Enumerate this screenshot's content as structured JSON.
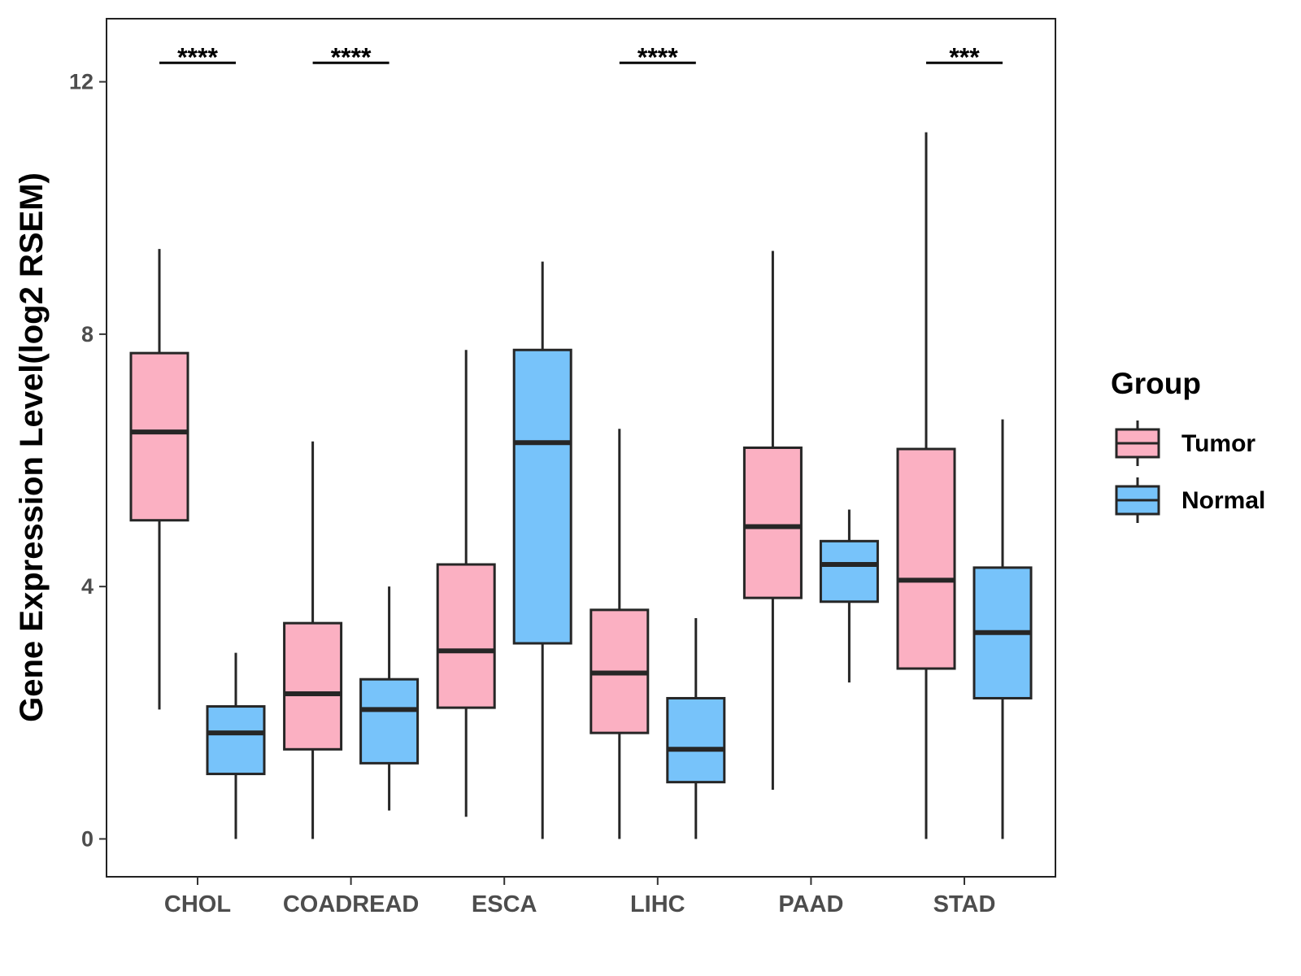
{
  "chart_data": {
    "type": "boxplot",
    "title": "",
    "xlabel": "",
    "ylabel": "Gene Expression Level(log2 RSEM)",
    "ylim": [
      -0.6,
      13.0
    ],
    "yticks": [
      0,
      4,
      8,
      12
    ],
    "grid": false,
    "legend": {
      "title": "Group",
      "position": "right",
      "entries": [
        {
          "name": "Tumor",
          "color": "#FBB0C2"
        },
        {
          "name": "Normal",
          "color": "#77C3FA"
        }
      ]
    },
    "categories": [
      "CHOL",
      "COADREAD",
      "ESCA",
      "LIHC",
      "PAAD",
      "STAD"
    ],
    "series": [
      {
        "name": "Tumor",
        "color": "#FBB0C2",
        "boxes": [
          {
            "min": 2.05,
            "q1": 5.05,
            "median": 6.45,
            "q3": 7.7,
            "max": 9.35
          },
          {
            "min": 0.0,
            "q1": 1.42,
            "median": 2.3,
            "q3": 3.42,
            "max": 6.3
          },
          {
            "min": 0.35,
            "q1": 2.08,
            "median": 2.98,
            "q3": 4.35,
            "max": 7.75
          },
          {
            "min": 0.0,
            "q1": 1.68,
            "median": 2.63,
            "q3": 3.63,
            "max": 6.5
          },
          {
            "min": 0.78,
            "q1": 3.82,
            "median": 4.95,
            "q3": 6.2,
            "max": 9.32
          },
          {
            "min": 0.0,
            "q1": 2.7,
            "median": 4.1,
            "q3": 6.18,
            "max": 11.2
          }
        ]
      },
      {
        "name": "Normal",
        "color": "#77C3FA",
        "boxes": [
          {
            "min": 0.0,
            "q1": 1.03,
            "median": 1.68,
            "q3": 2.1,
            "max": 2.95
          },
          {
            "min": 0.45,
            "q1": 1.2,
            "median": 2.05,
            "q3": 2.53,
            "max": 4.0
          },
          {
            "min": 0.0,
            "q1": 3.1,
            "median": 6.28,
            "q3": 7.75,
            "max": 9.15
          },
          {
            "min": 0.0,
            "q1": 0.9,
            "median": 1.42,
            "q3": 2.23,
            "max": 3.5
          },
          {
            "min": 2.48,
            "q1": 3.76,
            "median": 4.35,
            "q3": 4.72,
            "max": 5.22
          },
          {
            "min": 0.0,
            "q1": 2.23,
            "median": 3.27,
            "q3": 4.3,
            "max": 6.65
          }
        ]
      }
    ],
    "annotations": [
      {
        "category": "CHOL",
        "label": "****",
        "y": 12.3
      },
      {
        "category": "COADREAD",
        "label": "****",
        "y": 12.3
      },
      {
        "category": "LIHC",
        "label": "****",
        "y": 12.3
      },
      {
        "category": "STAD",
        "label": "***",
        "y": 12.3
      }
    ]
  }
}
